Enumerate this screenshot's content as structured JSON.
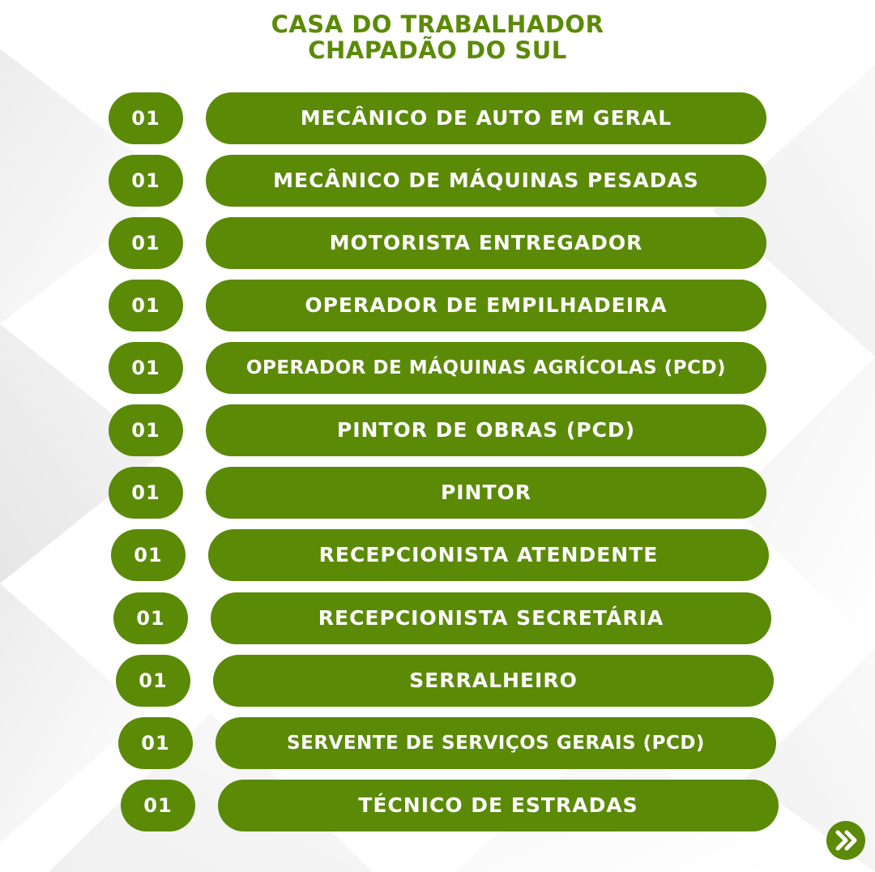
{
  "header": {
    "line1": "CASA DO TRABALHADOR",
    "line2": "CHAPADÃO DO SUL"
  },
  "jobs": [
    {
      "count": "01",
      "title": "MECÂNICO DE AUTO EM GERAL"
    },
    {
      "count": "01",
      "title": "MECÂNICO DE MÁQUINAS PESADAS"
    },
    {
      "count": "01",
      "title": "MOTORISTA ENTREGADOR"
    },
    {
      "count": "01",
      "title": "OPERADOR DE EMPILHADEIRA"
    },
    {
      "count": "01",
      "title": "OPERADOR DE MÁQUINAS AGRÍCOLAS (PCD)"
    },
    {
      "count": "01",
      "title": "PINTOR DE OBRAS (PCD)"
    },
    {
      "count": "01",
      "title": "PINTOR"
    },
    {
      "count": "01",
      "title": "RECEPCIONISTA ATENDENTE"
    },
    {
      "count": "01",
      "title": "RECEPCIONISTA SECRETÁRIA"
    },
    {
      "count": "01",
      "title": "SERRALHEIRO"
    },
    {
      "count": "01",
      "title": "SERVENTE DE SERVIÇOS GERAIS (PCD)"
    },
    {
      "count": "01",
      "title": "TÉCNICO DE ESTRADAS"
    }
  ],
  "colors": {
    "accent_green": "#5b8a07",
    "text_on_accent": "#ffffff",
    "background": "#ffffff"
  },
  "icons": {
    "next": "double-chevron-right-icon"
  }
}
